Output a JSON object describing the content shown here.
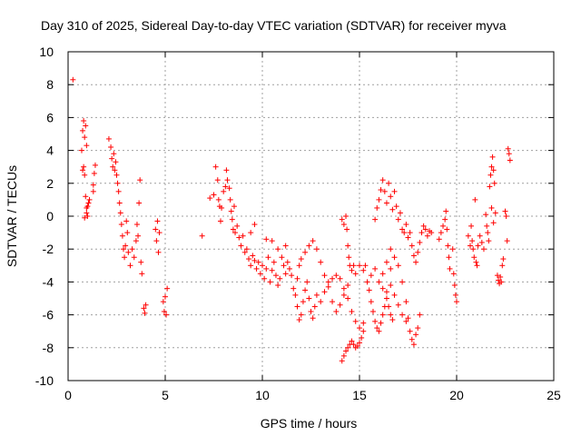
{
  "chart_data": {
    "type": "scatter",
    "title": "Day 310 of 2025, Sidereal Day-to-day VTEC variation (SDTVAR) for receiver myva",
    "xlabel": "GPS time / hours",
    "ylabel": "SDTVAR / TECUs",
    "xlim": [
      0,
      25
    ],
    "ylim": [
      -10,
      10
    ],
    "xticks": [
      0,
      5,
      10,
      15,
      20,
      25
    ],
    "yticks": [
      -10,
      -8,
      -6,
      -4,
      -2,
      0,
      2,
      4,
      6,
      8,
      10
    ],
    "xtick_labels": [
      "0",
      "5",
      "10",
      "15",
      "20",
      "25"
    ],
    "ytick_labels": [
      "-10",
      "-8",
      "-6",
      "-4",
      "-2",
      "0",
      "2",
      "4",
      "6",
      "8",
      "10"
    ],
    "grid": true,
    "marker": "+",
    "color": "#ff0000",
    "series": [
      {
        "name": "SDTVAR",
        "points": [
          [
            0.25,
            8.3
          ],
          [
            0.7,
            4.0
          ],
          [
            0.75,
            5.2
          ],
          [
            0.8,
            5.8
          ],
          [
            0.85,
            4.8
          ],
          [
            0.9,
            5.5
          ],
          [
            0.95,
            4.3
          ],
          [
            0.8,
            3.0
          ],
          [
            0.85,
            2.5
          ],
          [
            0.75,
            2.8
          ],
          [
            0.9,
            1.2
          ],
          [
            0.95,
            0.5
          ],
          [
            1.0,
            0.0
          ],
          [
            0.85,
            -0.1
          ],
          [
            1.05,
            0.8
          ],
          [
            1.1,
            1.0
          ],
          [
            0.95,
            0.2
          ],
          [
            1.0,
            0.6
          ],
          [
            1.3,
            1.5
          ],
          [
            1.35,
            2.6
          ],
          [
            1.4,
            3.1
          ],
          [
            1.3,
            1.9
          ],
          [
            2.1,
            4.7
          ],
          [
            2.2,
            4.2
          ],
          [
            2.25,
            3.5
          ],
          [
            2.3,
            3.0
          ],
          [
            2.35,
            3.8
          ],
          [
            2.4,
            2.8
          ],
          [
            2.45,
            3.3
          ],
          [
            2.5,
            2.5
          ],
          [
            2.55,
            2.0
          ],
          [
            2.6,
            1.5
          ],
          [
            2.65,
            0.8
          ],
          [
            2.7,
            0.2
          ],
          [
            2.75,
            -0.5
          ],
          [
            2.8,
            -1.2
          ],
          [
            2.85,
            -2.0
          ],
          [
            2.9,
            -2.5
          ],
          [
            2.95,
            -1.8
          ],
          [
            3.0,
            -0.3
          ],
          [
            3.05,
            -1.0
          ],
          [
            3.1,
            -2.2
          ],
          [
            3.2,
            -3.0
          ],
          [
            3.3,
            -2.0
          ],
          [
            3.4,
            -2.5
          ],
          [
            3.5,
            -1.5
          ],
          [
            3.55,
            -0.5
          ],
          [
            3.6,
            -1.2
          ],
          [
            3.65,
            0.8
          ],
          [
            3.7,
            2.2
          ],
          [
            3.75,
            -2.8
          ],
          [
            3.8,
            -3.5
          ],
          [
            3.9,
            -5.6
          ],
          [
            3.95,
            -5.9
          ],
          [
            4.0,
            -5.4
          ],
          [
            4.5,
            -0.8
          ],
          [
            4.55,
            -1.5
          ],
          [
            4.6,
            -0.3
          ],
          [
            4.65,
            -2.2
          ],
          [
            4.7,
            -1.0
          ],
          [
            4.9,
            -5.2
          ],
          [
            4.95,
            -5.8
          ],
          [
            5.0,
            -4.9
          ],
          [
            5.05,
            -6.0
          ],
          [
            5.1,
            -4.4
          ],
          [
            6.9,
            -1.2
          ],
          [
            7.3,
            1.1
          ],
          [
            7.5,
            1.3
          ],
          [
            7.6,
            3.0
          ],
          [
            7.7,
            2.2
          ],
          [
            7.75,
            1.0
          ],
          [
            7.8,
            0.6
          ],
          [
            7.85,
            -0.3
          ],
          [
            7.9,
            0.5
          ],
          [
            8.0,
            1.5
          ],
          [
            8.1,
            1.8
          ],
          [
            8.15,
            2.8
          ],
          [
            8.2,
            2.2
          ],
          [
            8.3,
            1.7
          ],
          [
            8.35,
            1.0
          ],
          [
            8.4,
            0.3
          ],
          [
            8.45,
            -0.2
          ],
          [
            8.5,
            -0.8
          ],
          [
            8.55,
            0.6
          ],
          [
            8.6,
            -1.0
          ],
          [
            8.7,
            -0.6
          ],
          [
            8.8,
            -1.3
          ],
          [
            8.9,
            -1.8
          ],
          [
            9.0,
            -1.2
          ],
          [
            9.1,
            -2.2
          ],
          [
            9.2,
            -2.0
          ],
          [
            9.3,
            -2.6
          ],
          [
            9.4,
            -3.0
          ],
          [
            9.5,
            -2.4
          ],
          [
            9.6,
            -2.7
          ],
          [
            9.7,
            -3.2
          ],
          [
            9.8,
            -2.8
          ],
          [
            9.9,
            -3.5
          ],
          [
            10.0,
            -3.0
          ],
          [
            10.1,
            -3.8
          ],
          [
            10.2,
            -3.2
          ],
          [
            10.3,
            -2.5
          ],
          [
            10.4,
            -4.0
          ],
          [
            10.5,
            -3.3
          ],
          [
            10.6,
            -2.8
          ],
          [
            10.7,
            -3.6
          ],
          [
            10.8,
            -4.2
          ],
          [
            10.9,
            -3.8
          ],
          [
            11.0,
            -2.5
          ],
          [
            11.1,
            -3.0
          ],
          [
            11.2,
            -3.5
          ],
          [
            11.3,
            -2.8
          ],
          [
            11.4,
            -3.2
          ],
          [
            11.5,
            -3.6
          ],
          [
            11.6,
            -4.4
          ],
          [
            11.7,
            -4.8
          ],
          [
            11.8,
            -5.5
          ],
          [
            11.9,
            -6.3
          ],
          [
            12.0,
            -6.0
          ],
          [
            12.1,
            -5.2
          ],
          [
            12.2,
            -4.5
          ],
          [
            12.3,
            -4.0
          ],
          [
            12.4,
            -5.0
          ],
          [
            12.5,
            -5.8
          ],
          [
            12.6,
            -6.2
          ],
          [
            12.7,
            -5.5
          ],
          [
            10.5,
            -1.5
          ],
          [
            10.8,
            -2.0
          ],
          [
            11.2,
            -1.8
          ],
          [
            9.4,
            -1.0
          ],
          [
            9.6,
            -0.5
          ],
          [
            10.2,
            -1.4
          ],
          [
            11.8,
            -3.8
          ],
          [
            11.9,
            -3.0
          ],
          [
            12.0,
            -2.6
          ],
          [
            12.2,
            -2.2
          ],
          [
            12.4,
            -1.8
          ],
          [
            12.6,
            -1.5
          ],
          [
            12.8,
            -2.0
          ],
          [
            13.0,
            -2.8
          ],
          [
            13.2,
            -3.6
          ],
          [
            13.4,
            -4.3
          ],
          [
            13.6,
            -5.2
          ],
          [
            13.8,
            -5.8
          ],
          [
            14.0,
            -5.4
          ],
          [
            14.2,
            -4.8
          ],
          [
            14.4,
            -4.2
          ],
          [
            12.8,
            -4.8
          ],
          [
            13.0,
            -5.2
          ],
          [
            13.2,
            -4.6
          ],
          [
            13.4,
            -4.0
          ],
          [
            13.6,
            -3.8
          ],
          [
            13.8,
            -3.6
          ],
          [
            14.0,
            -3.8
          ],
          [
            14.2,
            -4.4
          ],
          [
            14.4,
            -5.0
          ],
          [
            14.6,
            -5.8
          ],
          [
            14.8,
            -6.4
          ],
          [
            15.0,
            -6.8
          ],
          [
            15.2,
            -6.5
          ],
          [
            14.1,
            -8.8
          ],
          [
            14.2,
            -8.5
          ],
          [
            14.3,
            -8.2
          ],
          [
            14.4,
            -8.0
          ],
          [
            14.5,
            -7.8
          ],
          [
            14.6,
            -7.6
          ],
          [
            14.7,
            -7.8
          ],
          [
            14.8,
            -8.0
          ],
          [
            14.9,
            -7.9
          ],
          [
            15.0,
            -7.7
          ],
          [
            15.1,
            -7.4
          ],
          [
            15.2,
            -7.0
          ],
          [
            14.1,
            -0.2
          ],
          [
            14.2,
            -0.5
          ],
          [
            14.3,
            0.0
          ],
          [
            14.35,
            -0.8
          ],
          [
            14.4,
            -1.8
          ],
          [
            14.45,
            -2.5
          ],
          [
            14.5,
            -3.0
          ],
          [
            14.6,
            -3.3
          ],
          [
            14.7,
            -3.0
          ],
          [
            14.8,
            -3.5
          ],
          [
            15.0,
            -3.0
          ],
          [
            15.2,
            -3.3
          ],
          [
            15.3,
            -3.0
          ],
          [
            15.4,
            -4.0
          ],
          [
            15.5,
            -4.5
          ],
          [
            15.6,
            -5.2
          ],
          [
            15.7,
            -5.8
          ],
          [
            15.8,
            -6.4
          ],
          [
            15.9,
            -6.8
          ],
          [
            16.0,
            -7.0
          ],
          [
            16.1,
            -6.5
          ],
          [
            16.2,
            -6.0
          ],
          [
            16.3,
            -5.5
          ],
          [
            16.4,
            -5.0
          ],
          [
            16.5,
            -5.5
          ],
          [
            16.6,
            -6.0
          ],
          [
            16.7,
            -6.3
          ],
          [
            15.6,
            -3.6
          ],
          [
            15.8,
            -3.2
          ],
          [
            16.0,
            -4.0
          ],
          [
            16.2,
            -4.4
          ],
          [
            16.4,
            -4.6
          ],
          [
            16.6,
            -4.2
          ],
          [
            16.8,
            -4.8
          ],
          [
            17.0,
            -5.4
          ],
          [
            17.2,
            -6.0
          ],
          [
            17.4,
            -6.4
          ],
          [
            15.8,
            -0.2
          ],
          [
            15.9,
            0.5
          ],
          [
            16.0,
            1.0
          ],
          [
            16.1,
            1.6
          ],
          [
            16.2,
            2.2
          ],
          [
            16.3,
            1.5
          ],
          [
            16.4,
            0.8
          ],
          [
            16.5,
            2.0
          ],
          [
            16.6,
            1.2
          ],
          [
            16.7,
            0.4
          ],
          [
            16.8,
            1.5
          ],
          [
            16.9,
            0.6
          ],
          [
            17.0,
            -0.2
          ],
          [
            17.1,
            0.2
          ],
          [
            17.2,
            -0.8
          ],
          [
            17.3,
            -1.0
          ],
          [
            17.4,
            -0.5
          ],
          [
            17.5,
            -1.3
          ],
          [
            17.6,
            -1.0
          ],
          [
            17.7,
            -1.8
          ],
          [
            17.8,
            -2.4
          ],
          [
            17.9,
            -2.8
          ],
          [
            18.0,
            -2.2
          ],
          [
            18.1,
            -1.6
          ],
          [
            18.2,
            -1.0
          ],
          [
            18.3,
            -0.6
          ],
          [
            18.4,
            -0.8
          ],
          [
            18.5,
            -1.2
          ],
          [
            18.6,
            -0.9
          ],
          [
            18.7,
            -1.0
          ],
          [
            16.6,
            -2.0
          ],
          [
            16.8,
            -2.5
          ],
          [
            17.0,
            -3.0
          ],
          [
            17.2,
            -4.0
          ],
          [
            17.4,
            -5.2
          ],
          [
            17.5,
            -6.2
          ],
          [
            17.6,
            -7.0
          ],
          [
            17.7,
            -7.5
          ],
          [
            17.8,
            -7.8
          ],
          [
            17.9,
            -7.2
          ],
          [
            18.0,
            -6.8
          ],
          [
            18.1,
            -6.0
          ],
          [
            16.2,
            -3.5
          ],
          [
            16.4,
            -2.8
          ],
          [
            16.6,
            -3.2
          ],
          [
            19.1,
            -1.4
          ],
          [
            19.2,
            -1.0
          ],
          [
            19.3,
            -0.6
          ],
          [
            19.4,
            -0.2
          ],
          [
            19.45,
            0.3
          ],
          [
            19.5,
            -0.8
          ],
          [
            19.55,
            -1.8
          ],
          [
            19.6,
            -2.5
          ],
          [
            19.65,
            -3.2
          ],
          [
            19.8,
            -2.0
          ],
          [
            19.85,
            -3.5
          ],
          [
            19.9,
            -4.2
          ],
          [
            19.95,
            -4.8
          ],
          [
            20.0,
            -5.2
          ],
          [
            20.6,
            -1.2
          ],
          [
            20.7,
            -1.8
          ],
          [
            20.75,
            -0.6
          ],
          [
            20.8,
            -1.5
          ],
          [
            20.85,
            -2.0
          ],
          [
            20.9,
            -2.5
          ],
          [
            20.95,
            1.0
          ],
          [
            21.0,
            -2.8
          ],
          [
            21.05,
            -3.0
          ],
          [
            21.1,
            -1.8
          ],
          [
            21.2,
            -1.2
          ],
          [
            21.3,
            -1.6
          ],
          [
            21.4,
            -2.0
          ],
          [
            21.5,
            0.1
          ],
          [
            21.55,
            -0.6
          ],
          [
            21.6,
            -1.0
          ],
          [
            21.65,
            -1.5
          ],
          [
            21.7,
            1.8
          ],
          [
            21.75,
            2.5
          ],
          [
            21.8,
            3.0
          ],
          [
            21.85,
            3.6
          ],
          [
            21.9,
            2.8
          ],
          [
            21.95,
            2.0
          ],
          [
            21.8,
            0.5
          ],
          [
            22.0,
            0.2
          ],
          [
            21.9,
            -0.4
          ],
          [
            22.1,
            -3.6
          ],
          [
            22.15,
            -3.9
          ],
          [
            22.2,
            -4.1
          ],
          [
            22.25,
            -3.7
          ],
          [
            22.3,
            -4.0
          ],
          [
            22.35,
            -3.0
          ],
          [
            22.4,
            -2.6
          ],
          [
            22.5,
            0.3
          ],
          [
            22.55,
            0.0
          ],
          [
            22.6,
            -1.5
          ],
          [
            22.65,
            4.1
          ],
          [
            22.7,
            3.8
          ],
          [
            22.75,
            3.4
          ]
        ]
      }
    ]
  }
}
